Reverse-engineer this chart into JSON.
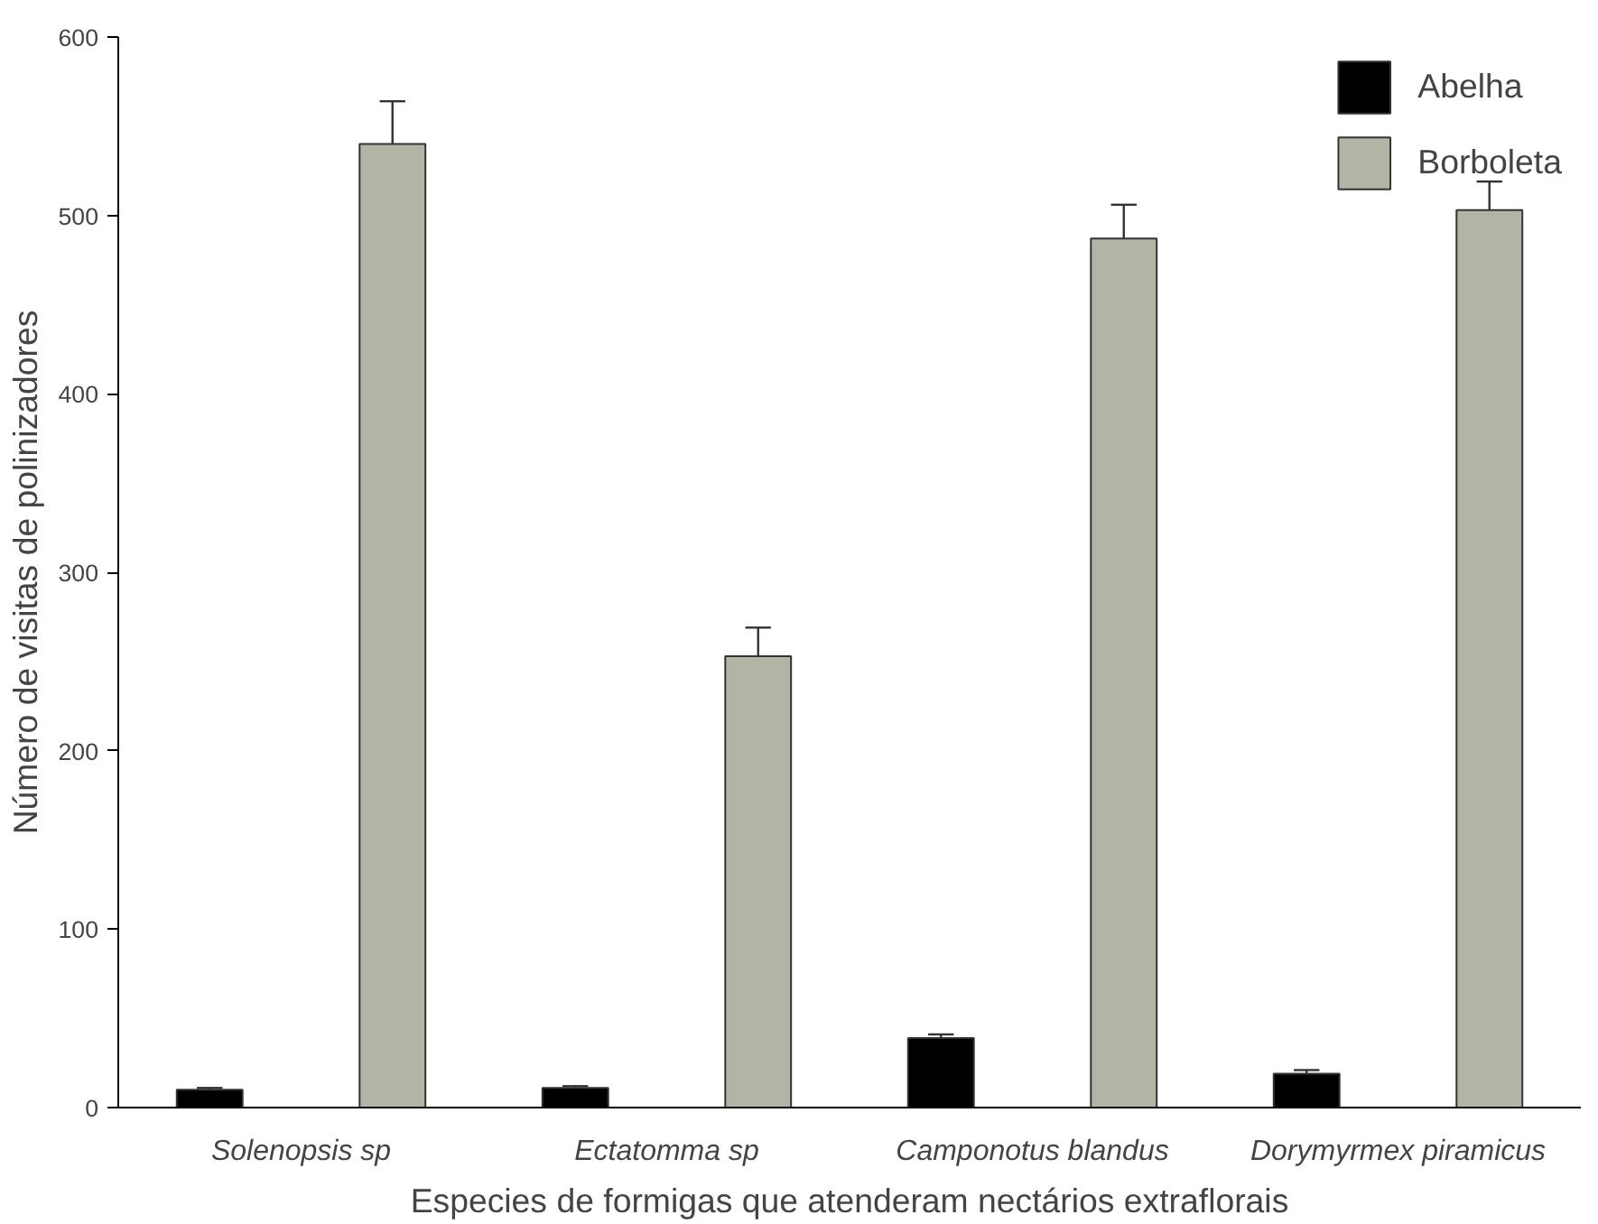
{
  "chart_data": {
    "type": "bar",
    "xlabel": "Especies de formigas que atenderam nectários extraflorais",
    "ylabel": "Número de visitas de polinizadores",
    "categories": [
      "Solenopsis sp",
      "Ectatomma sp",
      "Camponotus blandus",
      "Dorymyrmex piramicus"
    ],
    "series": [
      {
        "name": "Abelha",
        "color": "#000000",
        "values": [
          10,
          11,
          39,
          19
        ],
        "errors": [
          1,
          1,
          2,
          2
        ]
      },
      {
        "name": "Borboleta",
        "color": "#b3b3a6",
        "values": [
          540,
          253,
          487,
          503
        ],
        "errors": [
          24,
          16,
          19,
          16
        ]
      }
    ],
    "ylim": [
      0,
      600
    ],
    "yticks": [
      0,
      100,
      200,
      300,
      400,
      500,
      600
    ],
    "grid": false,
    "legend": "top right"
  }
}
